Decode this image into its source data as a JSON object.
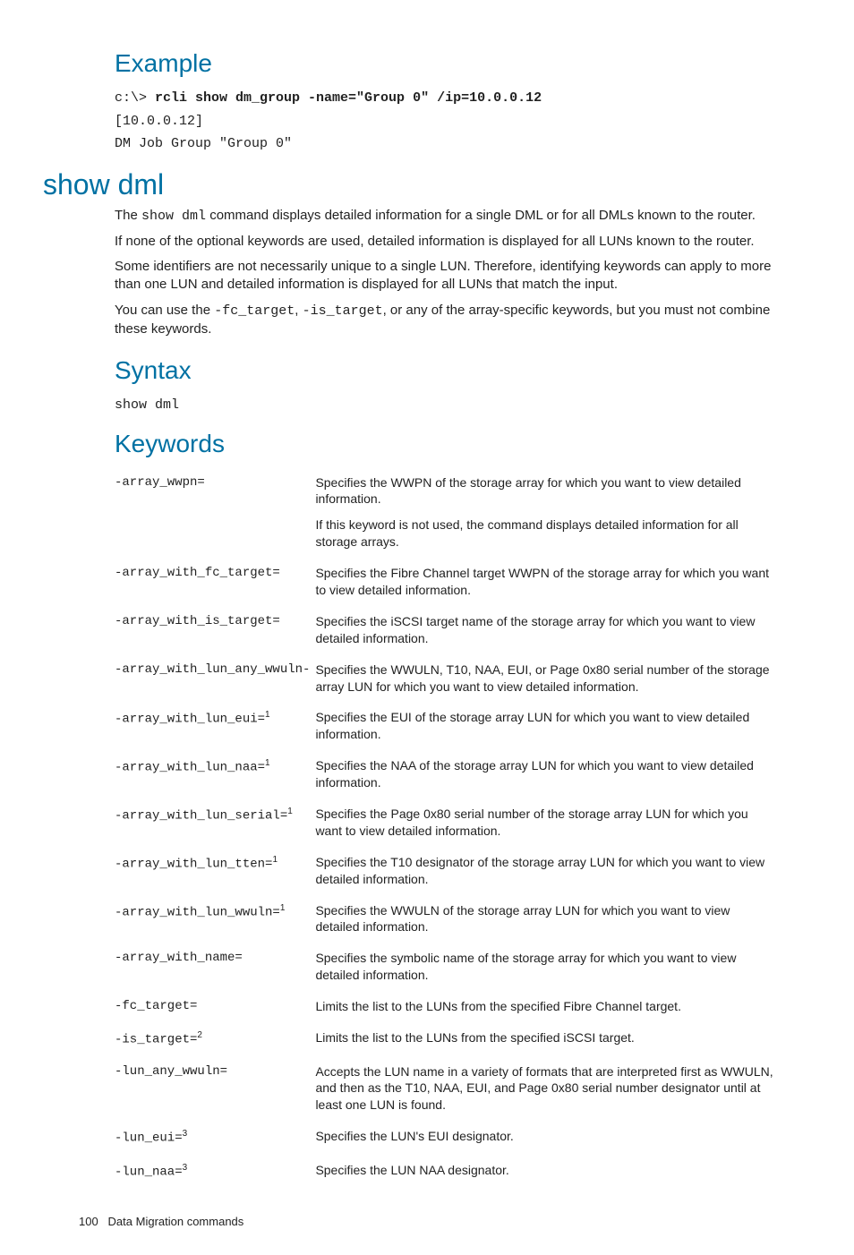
{
  "example": {
    "heading": "Example",
    "prompt": "c:\\> ",
    "command": "rcli show dm_group -name=\"Group 0\" /ip=10.0.0.12",
    "out1": "[10.0.0.12]",
    "out2": "DM Job Group \"Group 0\""
  },
  "showdml": {
    "heading": "show dml",
    "p1a": "The ",
    "p1code": "show dml",
    "p1b": " command displays detailed information for a single DML or for all DMLs known to the router.",
    "p2": "If none of the optional keywords are used, detailed information is displayed for all LUNs known to the router.",
    "p3": "Some identifiers are not necessarily unique to a single LUN. Therefore, identifying keywords can apply to more than one LUN and detailed information is displayed for all LUNs that match the input.",
    "p4a": "You can use the ",
    "p4c1": "-fc_target",
    "p4b": ", ",
    "p4c2": "-is_target",
    "p4c": ", or any of the array-specific keywords, but you must not combine these keywords."
  },
  "syntax": {
    "heading": "Syntax",
    "code": "show dml"
  },
  "keywordsHeading": "Keywords",
  "keywords": [
    {
      "k": "-array_wwpn=",
      "sup": "",
      "d": "Specifies the WWPN of the storage array for which you want to view detailed information.",
      "d2": "If this keyword is not used, the command displays detailed information for all storage arrays."
    },
    {
      "k": "-array_with_fc_target=",
      "sup": "",
      "d": "Specifies the Fibre Channel target WWPN of the storage array for which you want to view detailed information."
    },
    {
      "k": "-array_with_is_target=",
      "sup": "",
      "d": "Specifies the iSCSI target name of the storage array for which you want to view detailed information."
    },
    {
      "k": "-array_with_lun_any_wwuln-",
      "sup": "",
      "d": "Specifies the WWULN, T10, NAA, EUI, or Page 0x80 serial number of the storage array LUN for which you want to view detailed information."
    },
    {
      "k": "-array_with_lun_eui=",
      "sup": "1",
      "d": "Specifies the EUI of the storage array LUN for which you want to view detailed information."
    },
    {
      "k": "-array_with_lun_naa=",
      "sup": "1",
      "d": "Specifies the NAA of the storage array LUN for which you want to view detailed information."
    },
    {
      "k": "-array_with_lun_serial=",
      "sup": "1",
      "d": "Specifies the Page 0x80 serial number of the storage array LUN for which you want to view detailed information."
    },
    {
      "k": "-array_with_lun_tten=",
      "sup": "1",
      "d": "Specifies the T10 designator of the storage array LUN for which you want to view detailed information."
    },
    {
      "k": "-array_with_lun_wwuln=",
      "sup": "1",
      "d": "Specifies the WWULN of the storage array LUN for which you want to view detailed information."
    },
    {
      "k": "-array_with_name=",
      "sup": "",
      "d": "Specifies the symbolic name of the storage array for which you want to view detailed information."
    },
    {
      "k": "-fc_target=",
      "sup": "",
      "d": "Limits the list to the LUNs from the specified Fibre Channel target."
    },
    {
      "k": "-is_target=",
      "sup": "2",
      "d": "Limits the list to the LUNs from the specified iSCSI target."
    },
    {
      "k": "-lun_any_wwuln=",
      "sup": "",
      "d": "Accepts the LUN name in a variety of formats that are interpreted first as WWULN, and then as the T10, NAA, EUI, and Page 0x80 serial number designator until at least one LUN is found."
    },
    {
      "k": "-lun_eui=",
      "sup": "3",
      "d": "Specifies the LUN's EUI designator."
    },
    {
      "k": "-lun_naa=",
      "sup": "3",
      "d": "Specifies the LUN NAA designator."
    }
  ],
  "footer": {
    "pageNum": "100",
    "section": "Data Migration commands"
  }
}
